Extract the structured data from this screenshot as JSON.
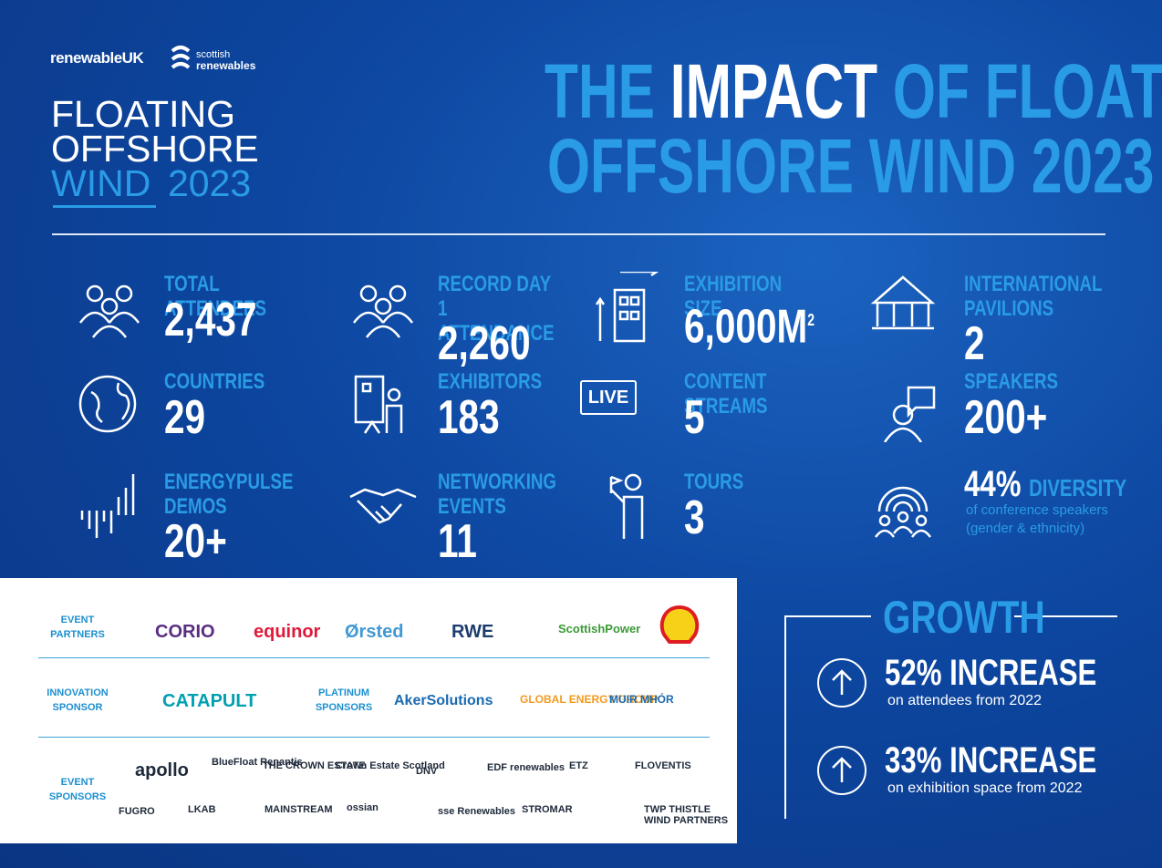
{
  "header": {
    "logos": [
      "renewableUK",
      "scottish",
      "renewables"
    ],
    "event": {
      "line1": "FLOATING",
      "line2": "OFFSHORE",
      "line3a": "WIND",
      "line3b": "2023"
    },
    "title": {
      "part1": "THE",
      "part2": "IMPACT",
      "part3": "OF FLOATING",
      "line2": "OFFSHORE WIND 2023"
    }
  },
  "stats": [
    {
      "label": "TOTAL ATTENDEES",
      "value": "2,437"
    },
    {
      "label": "RECORD DAY 1 ATTENDANCE",
      "value": "2,260"
    },
    {
      "label": "EXHIBITION SIZE",
      "value": "6,000M",
      "sup": "2"
    },
    {
      "label": "INTERNATIONAL PAVILIONS",
      "value": "2"
    },
    {
      "label": "COUNTRIES",
      "value": "29"
    },
    {
      "label": "EXHIBITORS",
      "value": "183"
    },
    {
      "label": "CONTENT STREAMS",
      "value": "5",
      "icon": "LIVE"
    },
    {
      "label": "SPEAKERS",
      "value": "200+"
    },
    {
      "label": "ENERGYPULSE DEMOS",
      "value": "20+"
    },
    {
      "label": "NETWORKING EVENTS",
      "value": "11"
    },
    {
      "label": "TOURS",
      "value": "3"
    },
    {
      "label": "DIVERSITY",
      "value": "44%",
      "note": [
        "of conference speakers",
        "(gender & ethnicity)"
      ]
    }
  ],
  "sponsors": {
    "event_partners": {
      "label": "EVENT PARTNERS",
      "logos": [
        "CORIO",
        "equinor",
        "Ørsted",
        "RWE",
        "ScottishPower"
      ]
    },
    "innovation": {
      "label": "INNOVATION SPONSOR",
      "logos": [
        "CATAPULT"
      ]
    },
    "platinum": {
      "label": "PLATINUM SPONSORS",
      "logos": [
        "AkerSolutions",
        "GLOBAL ENERGY GROUP",
        "MUIR MHÓR"
      ]
    },
    "event_sponsors": {
      "label": "EVENT SPONSORS",
      "logos": [
        "apollo",
        "BlueFloat Renantis",
        "THE CROWN ESTATE",
        "Crown Estate Scotland",
        "DNV",
        "EDF renewables",
        "ETZ",
        "FLOVENTIS",
        "FUGRO",
        "LKAB",
        "MAINSTREAM",
        "ossian",
        "sse Renewables",
        "STROMAR",
        "TWP THISTLE WIND PARTNERS"
      ]
    }
  },
  "growth": {
    "title": "GROWTH",
    "items": [
      {
        "headline": "52% INCREASE",
        "detail": "on attendees from 2022"
      },
      {
        "headline": "33% INCREASE",
        "detail": "on exhibition space from 2022"
      }
    ]
  }
}
